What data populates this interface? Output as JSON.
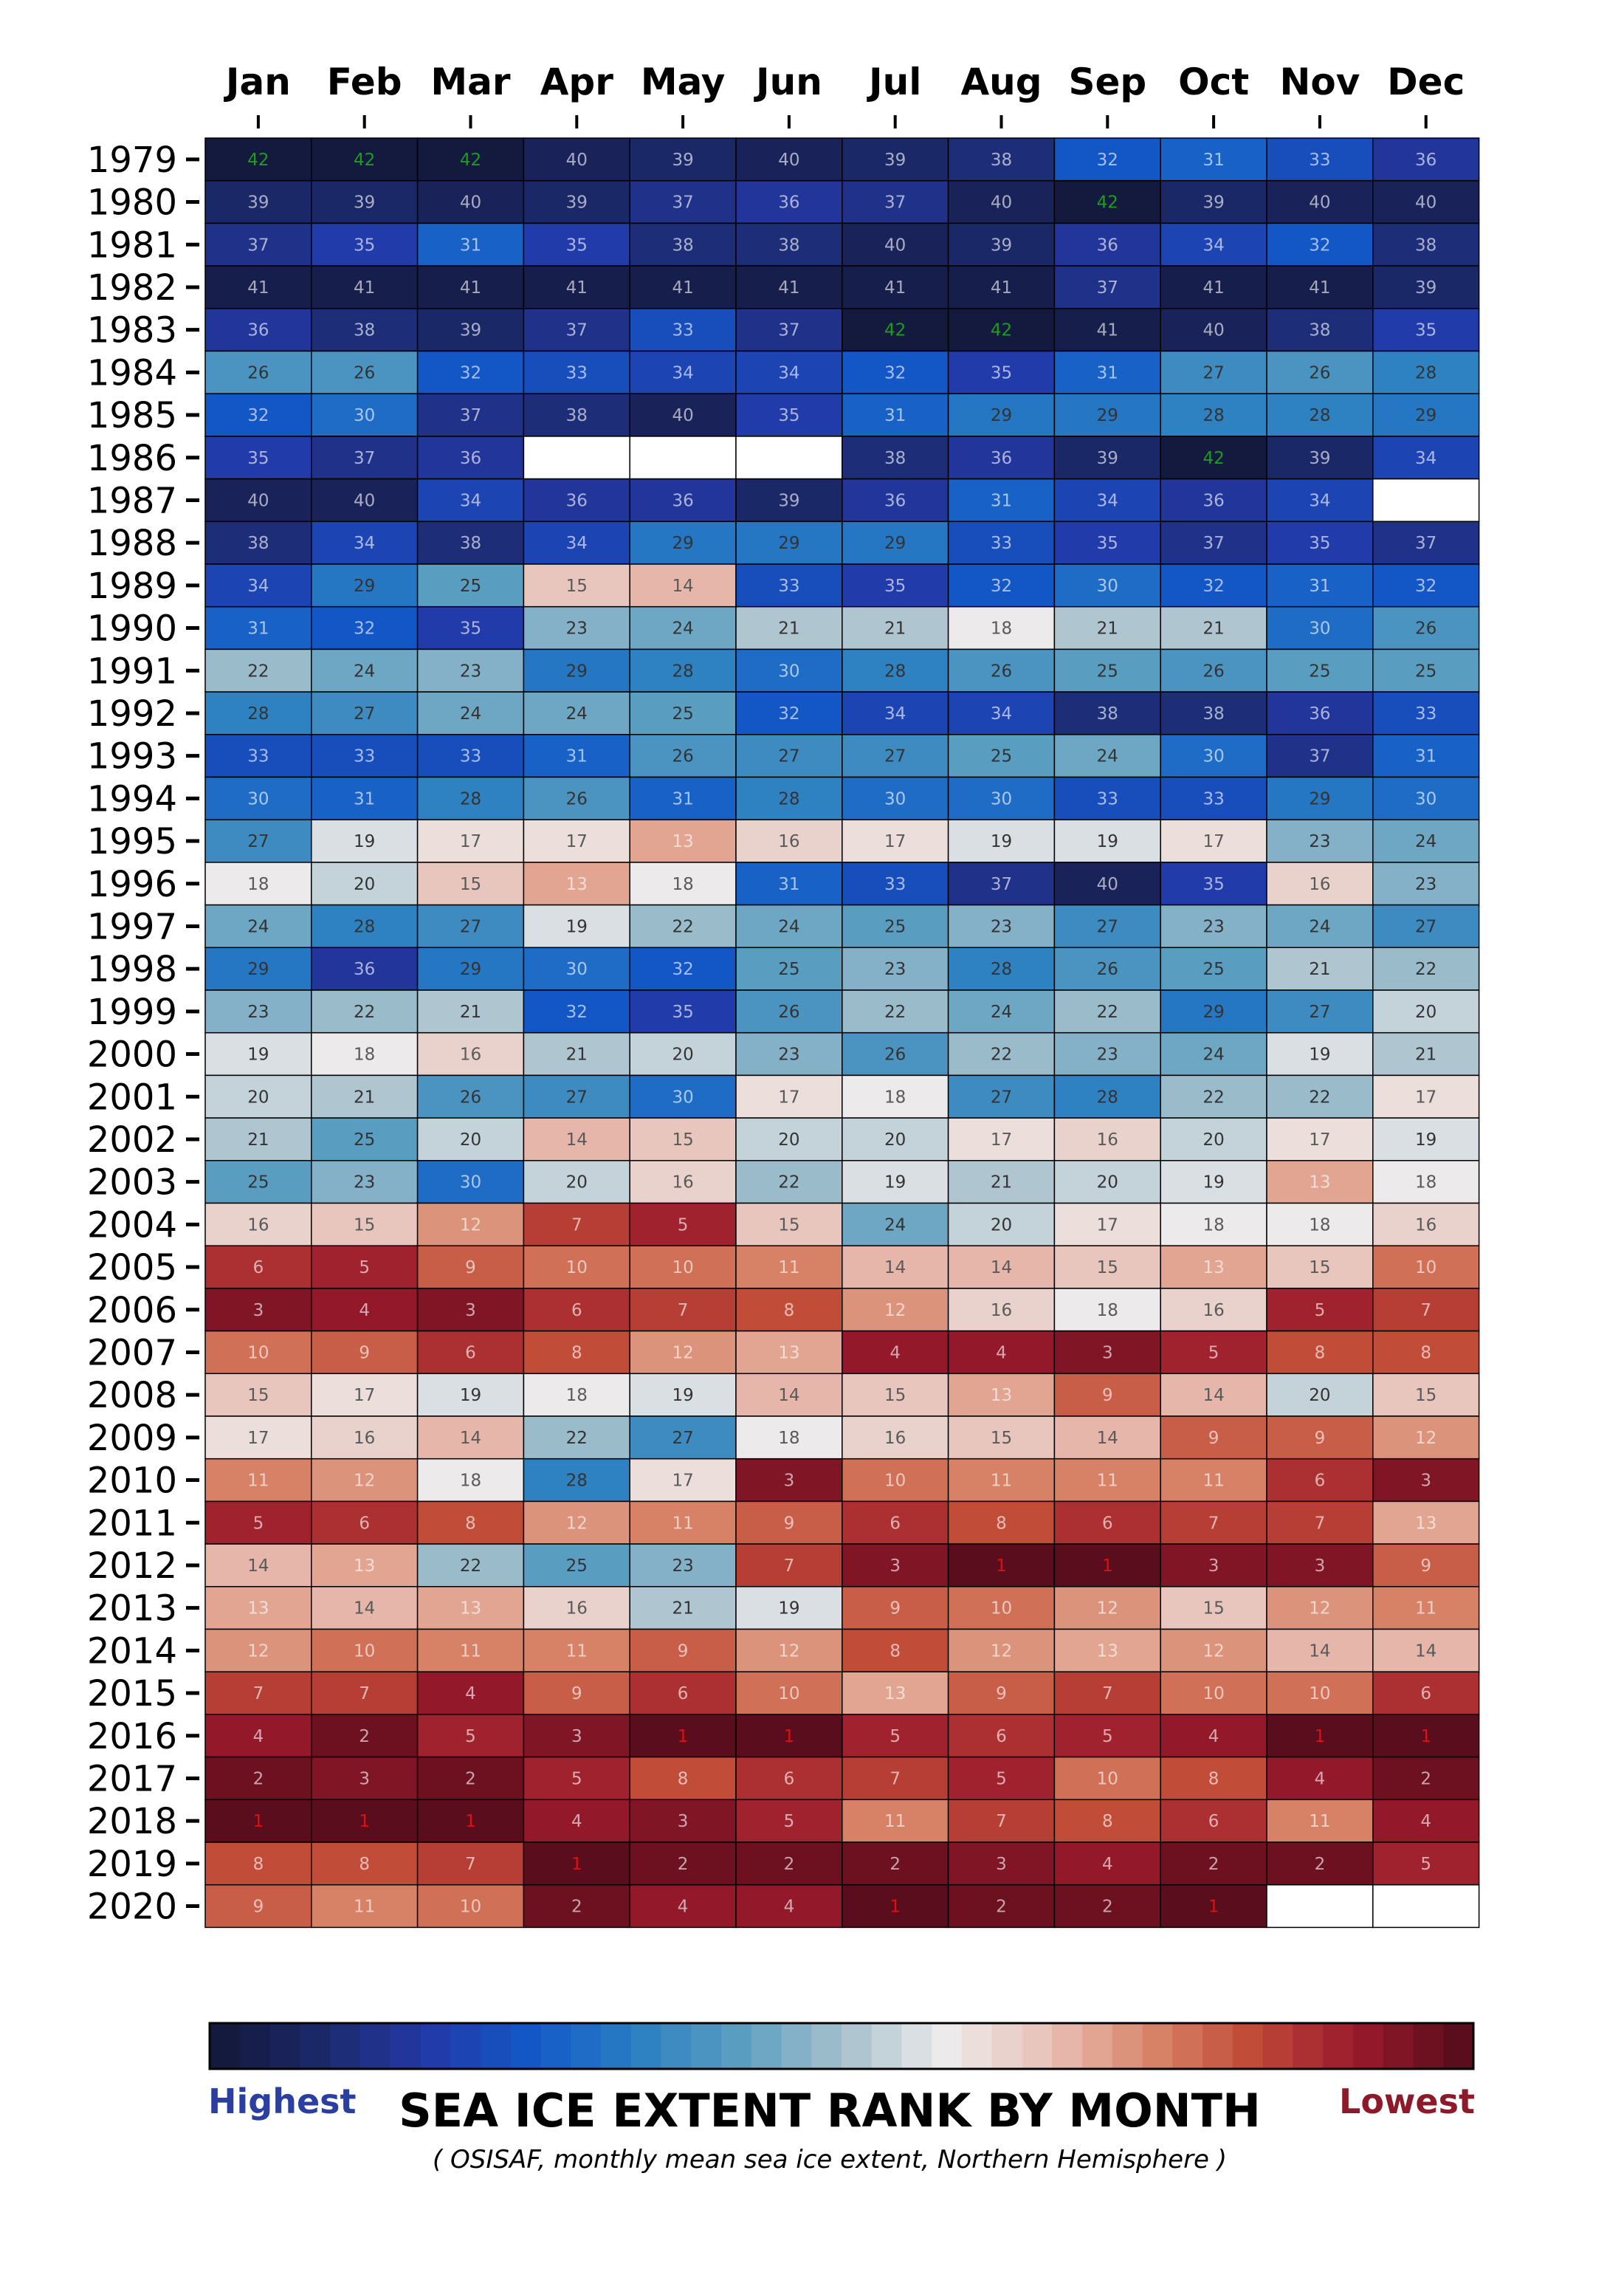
{
  "chart_data": {
    "type": "heatmap",
    "title": "SEA ICE EXTENT RANK BY MONTH",
    "subtitle": "( OSISAF, monthly mean sea ice extent, Northern Hemisphere )",
    "months": [
      "Jan",
      "Feb",
      "Mar",
      "Apr",
      "May",
      "Jun",
      "Jul",
      "Aug",
      "Sep",
      "Oct",
      "Nov",
      "Dec"
    ],
    "years": [
      "1979",
      "1980",
      "1981",
      "1982",
      "1983",
      "1984",
      "1985",
      "1986",
      "1987",
      "1988",
      "1989",
      "1990",
      "1991",
      "1992",
      "1993",
      "1994",
      "1995",
      "1996",
      "1997",
      "1998",
      "1999",
      "2000",
      "2001",
      "2002",
      "2003",
      "2004",
      "2005",
      "2006",
      "2007",
      "2008",
      "2009",
      "2010",
      "2011",
      "2012",
      "2013",
      "2014",
      "2015",
      "2016",
      "2017",
      "2018",
      "2019",
      "2020"
    ],
    "values": [
      [
        42,
        42,
        42,
        40,
        39,
        40,
        39,
        38,
        32,
        31,
        33,
        36
      ],
      [
        39,
        39,
        40,
        39,
        37,
        36,
        37,
        40,
        42,
        39,
        40,
        40
      ],
      [
        37,
        35,
        31,
        35,
        38,
        38,
        40,
        39,
        36,
        34,
        32,
        38
      ],
      [
        41,
        41,
        41,
        41,
        41,
        41,
        41,
        41,
        37,
        41,
        41,
        39
      ],
      [
        36,
        38,
        39,
        37,
        33,
        37,
        42,
        42,
        41,
        40,
        38,
        35
      ],
      [
        26,
        26,
        32,
        33,
        34,
        34,
        32,
        35,
        31,
        27,
        26,
        28
      ],
      [
        32,
        30,
        37,
        38,
        40,
        35,
        31,
        29,
        29,
        28,
        28,
        29
      ],
      [
        35,
        37,
        36,
        null,
        null,
        null,
        38,
        36,
        39,
        42,
        39,
        34
      ],
      [
        40,
        40,
        34,
        36,
        36,
        39,
        36,
        31,
        34,
        36,
        34,
        null
      ],
      [
        38,
        34,
        38,
        34,
        29,
        29,
        29,
        33,
        35,
        37,
        35,
        37
      ],
      [
        34,
        29,
        25,
        15,
        14,
        33,
        35,
        32,
        30,
        32,
        31,
        32
      ],
      [
        31,
        32,
        35,
        23,
        24,
        21,
        21,
        18,
        21,
        21,
        30,
        26
      ],
      [
        22,
        24,
        23,
        29,
        28,
        30,
        28,
        26,
        25,
        26,
        25,
        25
      ],
      [
        28,
        27,
        24,
        24,
        25,
        32,
        34,
        34,
        38,
        38,
        36,
        33
      ],
      [
        33,
        33,
        33,
        31,
        26,
        27,
        27,
        25,
        24,
        30,
        37,
        31
      ],
      [
        30,
        31,
        28,
        26,
        31,
        28,
        30,
        30,
        33,
        33,
        29,
        30
      ],
      [
        27,
        19,
        17,
        17,
        13,
        16,
        17,
        19,
        19,
        17,
        23,
        24
      ],
      [
        18,
        20,
        15,
        13,
        18,
        31,
        33,
        37,
        40,
        35,
        16,
        23
      ],
      [
        24,
        28,
        27,
        19,
        22,
        24,
        25,
        23,
        27,
        23,
        24,
        27
      ],
      [
        29,
        36,
        29,
        30,
        32,
        25,
        23,
        28,
        26,
        25,
        21,
        22
      ],
      [
        23,
        22,
        21,
        32,
        35,
        26,
        22,
        24,
        22,
        29,
        27,
        20
      ],
      [
        19,
        18,
        16,
        21,
        20,
        23,
        26,
        22,
        23,
        24,
        19,
        21
      ],
      [
        20,
        21,
        26,
        27,
        30,
        17,
        18,
        27,
        28,
        22,
        22,
        17
      ],
      [
        21,
        25,
        20,
        14,
        15,
        20,
        20,
        17,
        16,
        20,
        17,
        19
      ],
      [
        25,
        23,
        30,
        20,
        16,
        22,
        19,
        21,
        20,
        19,
        13,
        18
      ],
      [
        16,
        15,
        12,
        7,
        5,
        15,
        24,
        20,
        17,
        18,
        18,
        16
      ],
      [
        6,
        5,
        9,
        10,
        10,
        11,
        14,
        14,
        15,
        13,
        15,
        10
      ],
      [
        3,
        4,
        3,
        6,
        7,
        8,
        12,
        16,
        18,
        16,
        5,
        7
      ],
      [
        10,
        9,
        6,
        8,
        12,
        13,
        4,
        4,
        3,
        5,
        8,
        8
      ],
      [
        15,
        17,
        19,
        18,
        19,
        14,
        15,
        13,
        9,
        14,
        20,
        15
      ],
      [
        17,
        16,
        14,
        22,
        27,
        18,
        16,
        15,
        14,
        9,
        9,
        12
      ],
      [
        11,
        12,
        18,
        28,
        17,
        3,
        10,
        11,
        11,
        11,
        6,
        3
      ],
      [
        5,
        6,
        8,
        12,
        11,
        9,
        6,
        8,
        6,
        7,
        7,
        13
      ],
      [
        14,
        13,
        22,
        25,
        23,
        7,
        3,
        1,
        1,
        3,
        3,
        9
      ],
      [
        13,
        14,
        13,
        16,
        21,
        19,
        9,
        10,
        12,
        15,
        12,
        11
      ],
      [
        12,
        10,
        11,
        11,
        9,
        12,
        8,
        12,
        13,
        12,
        14,
        14
      ],
      [
        7,
        7,
        4,
        9,
        6,
        10,
        13,
        9,
        7,
        10,
        10,
        6
      ],
      [
        4,
        2,
        5,
        3,
        1,
        1,
        5,
        6,
        5,
        4,
        1,
        1
      ],
      [
        2,
        3,
        2,
        5,
        8,
        6,
        7,
        5,
        10,
        8,
        4,
        2
      ],
      [
        1,
        1,
        1,
        4,
        3,
        5,
        11,
        7,
        8,
        6,
        11,
        4
      ],
      [
        8,
        8,
        7,
        1,
        2,
        2,
        2,
        3,
        4,
        2,
        2,
        5
      ],
      [
        9,
        11,
        10,
        2,
        4,
        4,
        1,
        2,
        2,
        1,
        null,
        null
      ]
    ],
    "rank_range": [
      1,
      42
    ],
    "legend": {
      "high_label": "Highest",
      "low_label": "Lowest",
      "placement": "bottom"
    },
    "colors": {
      "highest_text": "#1f9c1f",
      "lowest_text": "#e01010",
      "legend_high": "#2a3fa0",
      "legend_low": "#8c1a2a",
      "scale": [
        "#141a3d",
        "#1c2a6e",
        "#2239a8",
        "#1258c8",
        "#2a7fc2",
        "#5a9ec0",
        "#a4c0cc",
        "#ecebeb",
        "#e8c2b8",
        "#d9866a",
        "#c04a36",
        "#9a1a2c",
        "#5a0d1c"
      ]
    }
  }
}
